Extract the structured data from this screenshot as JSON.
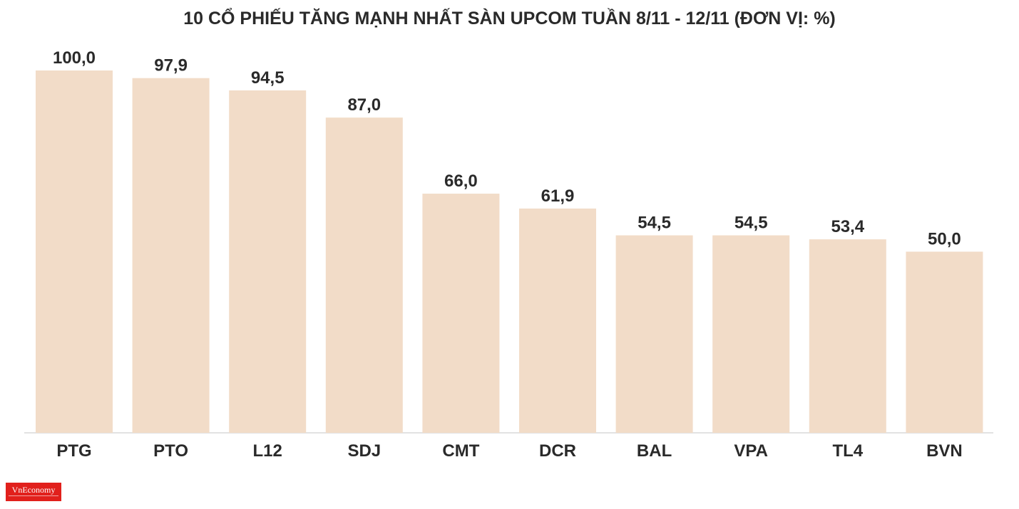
{
  "chart_data": {
    "type": "bar",
    "title": "10 CỔ PHIẾU TĂNG MẠNH NHẤT SÀN UPCOM TUẦN 8/11 - 12/11 (ĐƠN VỊ: %)",
    "categories": [
      "PTG",
      "PTO",
      "L12",
      "SDJ",
      "CMT",
      "DCR",
      "BAL",
      "VPA",
      "TL4",
      "BVN"
    ],
    "values": [
      100.0,
      97.9,
      94.5,
      87.0,
      66.0,
      61.9,
      54.5,
      54.5,
      53.4,
      50.0
    ],
    "value_labels": [
      "100,0",
      "97,9",
      "94,5",
      "87,0",
      "66,0",
      "61,9",
      "54,5",
      "54,5",
      "53,4",
      "50,0"
    ],
    "ylim": [
      0,
      100
    ],
    "grid": false,
    "legend": "none",
    "bar_color": "#f2dcc8",
    "text_color": "#2a2a2a"
  },
  "brand": {
    "logo_text": "VnEconomy",
    "logo_color": "#e1201c"
  }
}
